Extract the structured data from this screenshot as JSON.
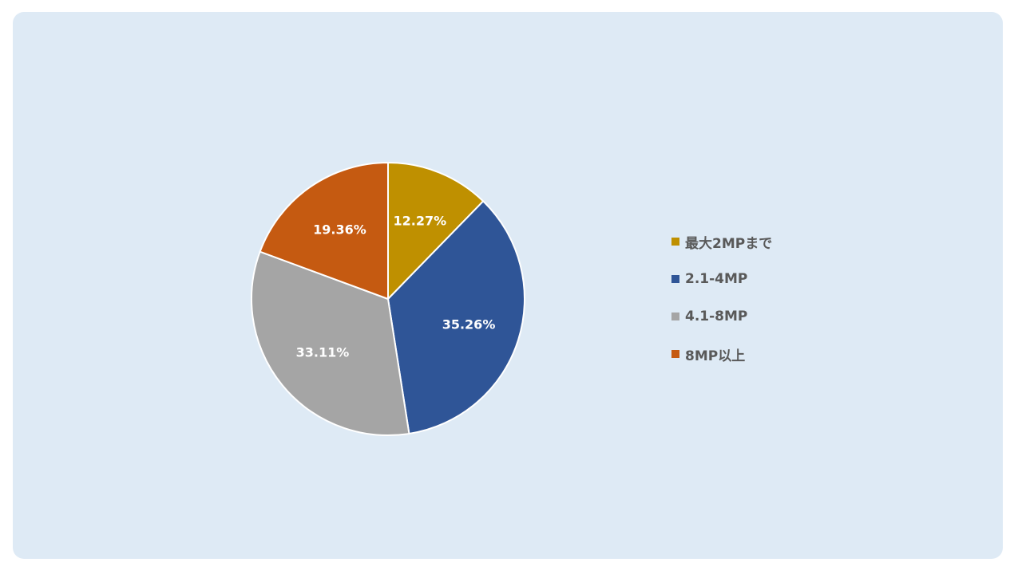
{
  "chart_data": {
    "type": "pie",
    "categories": [
      "最大2MPまで",
      "2.1-4MP",
      "4.1-8MP",
      "8MP以上"
    ],
    "values": [
      12.27,
      35.26,
      33.11,
      19.36
    ],
    "labels": [
      "12.27%",
      "35.26%",
      "33.11%",
      "19.36%"
    ],
    "colors": [
      "#bf9000",
      "#2f5597",
      "#a5a5a5",
      "#c55a11"
    ],
    "legend_position": "right",
    "start_angle": "top",
    "direction": "clockwise"
  },
  "legend": {
    "items": [
      {
        "label": "最大2MPまで",
        "color": "#bf9000"
      },
      {
        "label": "2.1-4MP",
        "color": "#2f5597"
      },
      {
        "label": "4.1-8MP",
        "color": "#a5a5a5"
      },
      {
        "label": "8MP以上",
        "color": "#c55a11"
      }
    ]
  },
  "panel": {
    "background": "#deeaf5"
  }
}
